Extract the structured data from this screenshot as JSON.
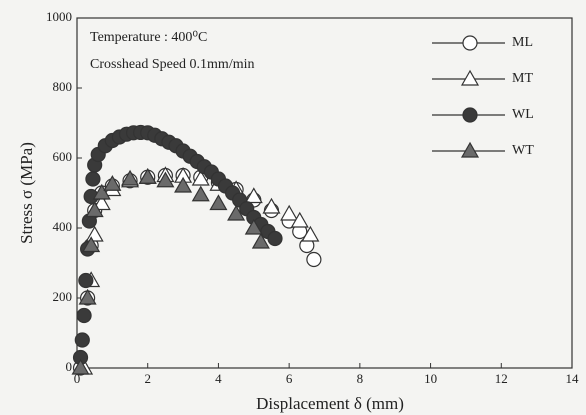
{
  "chart_data": {
    "type": "line",
    "xlabel": "Displacement δ (mm)",
    "ylabel": "Stress σ (MPa)",
    "annotations": [
      "Temperature : 400⁰C",
      "Crosshead Speed 0.1mm/min"
    ],
    "xlim": [
      0,
      14
    ],
    "xticks": [
      0,
      2,
      4,
      6,
      8,
      10,
      12,
      14
    ],
    "ylim": [
      0,
      1000
    ],
    "yticks": [
      0,
      200,
      400,
      600,
      800,
      1000
    ],
    "legend": "upper right",
    "series": [
      {
        "name": "ML",
        "marker": "circle",
        "filled": false,
        "color": "#333333",
        "x": [
          0.1,
          0.3,
          0.4,
          0.5,
          0.7,
          1.0,
          1.5,
          2.0,
          2.5,
          3.0,
          3.5,
          4.0,
          4.5,
          5.0,
          5.5,
          6.0,
          6.3,
          6.5,
          6.7
        ],
        "values": [
          0,
          200,
          350,
          450,
          500,
          520,
          535,
          545,
          550,
          550,
          545,
          530,
          510,
          480,
          450,
          420,
          390,
          350,
          310
        ]
      },
      {
        "name": "MT",
        "marker": "triangle",
        "filled": false,
        "color": "#333333",
        "x": [
          0.2,
          0.4,
          0.5,
          0.7,
          1.0,
          1.5,
          2.0,
          2.5,
          3.0,
          3.5,
          4.0,
          4.5,
          5.0,
          5.5,
          6.0,
          6.3,
          6.6
        ],
        "values": [
          0,
          250,
          380,
          470,
          510,
          535,
          545,
          550,
          548,
          540,
          525,
          510,
          490,
          460,
          440,
          420,
          380
        ]
      },
      {
        "name": "WL",
        "marker": "circle",
        "filled": true,
        "color": "#3a3a3a",
        "x": [
          0.1,
          0.15,
          0.2,
          0.25,
          0.3,
          0.35,
          0.4,
          0.45,
          0.5,
          0.6,
          0.8,
          1.0,
          1.2,
          1.4,
          1.6,
          1.8,
          2.0,
          2.2,
          2.4,
          2.6,
          2.8,
          3.0,
          3.2,
          3.4,
          3.6,
          3.8,
          4.0,
          4.2,
          4.4,
          4.6,
          4.8,
          5.0,
          5.2,
          5.4,
          5.6
        ],
        "values": [
          30,
          80,
          150,
          250,
          340,
          420,
          490,
          540,
          580,
          610,
          635,
          650,
          660,
          668,
          672,
          673,
          672,
          665,
          655,
          645,
          635,
          620,
          605,
          590,
          575,
          560,
          540,
          520,
          500,
          480,
          455,
          430,
          410,
          390,
          370
        ]
      },
      {
        "name": "WT",
        "marker": "triangle",
        "filled": true,
        "color": "#6a6a6a",
        "x": [
          0.1,
          0.3,
          0.4,
          0.5,
          0.7,
          1.0,
          1.5,
          2.0,
          2.5,
          3.0,
          3.5,
          4.0,
          4.5,
          5.0,
          5.2
        ],
        "values": [
          0,
          200,
          350,
          450,
          500,
          525,
          540,
          545,
          535,
          520,
          495,
          470,
          440,
          400,
          360
        ]
      }
    ]
  }
}
